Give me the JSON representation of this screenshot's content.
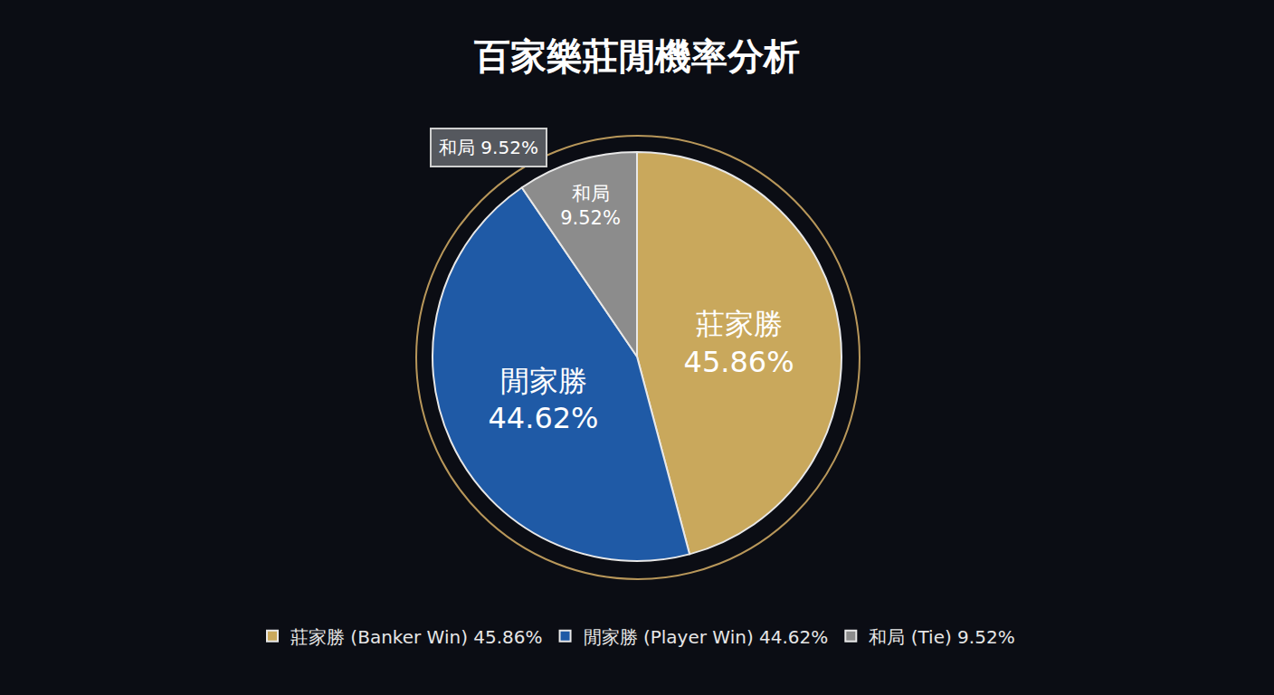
{
  "chart_data": {
    "type": "pie",
    "title": "百家樂莊閒機率分析",
    "categories": [
      "莊家勝",
      "閒家勝",
      "和局"
    ],
    "values": [
      45.86,
      44.62,
      9.52
    ],
    "value_labels": [
      "45.86%",
      "44.62%",
      "9.52%"
    ],
    "colors": [
      "#c9a85c",
      "#1f5aa6",
      "#8c8c8c"
    ],
    "legend_labels": [
      "莊家勝 (Banker Win) 45.86%",
      "閒家勝 (Player Win) 44.62%",
      "和局 (Tie) 9.52%"
    ],
    "annotations": [
      {
        "text": "和局 9.52%"
      }
    ],
    "legend": "bottom",
    "data_labels": true
  }
}
